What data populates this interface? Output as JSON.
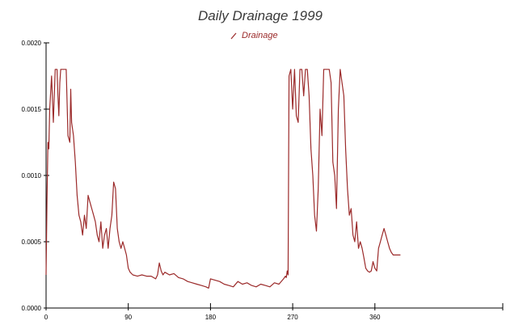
{
  "chart_data": {
    "type": "line",
    "title": "Daily Drainage 1999",
    "xlabel": "",
    "ylabel": "",
    "xlim": [
      0,
      500
    ],
    "ylim": [
      0,
      0.002
    ],
    "xticks": [
      "0",
      "90",
      "180",
      "270",
      "360"
    ],
    "yticks": [
      "0.0000",
      "0.0005",
      "0.0010",
      "0.0015",
      "0.0020"
    ],
    "legend": {
      "position": "top-center",
      "entries": [
        "Drainage"
      ]
    },
    "grid": false,
    "colors": {
      "series": "#9b2a2a",
      "axis": "#000000"
    },
    "series": [
      {
        "name": "Drainage",
        "x": [
          0,
          1,
          2,
          3,
          4,
          6,
          8,
          10,
          12,
          13,
          14,
          15,
          16,
          17,
          18,
          20,
          22,
          24,
          26,
          27,
          28,
          30,
          32,
          34,
          36,
          38,
          40,
          42,
          44,
          46,
          48,
          50,
          52,
          54,
          56,
          58,
          60,
          62,
          64,
          66,
          68,
          70,
          72,
          74,
          76,
          78,
          80,
          82,
          84,
          86,
          88,
          90,
          92,
          95,
          100,
          105,
          110,
          115,
          120,
          122,
          124,
          126,
          128,
          130,
          135,
          140,
          145,
          150,
          155,
          160,
          165,
          170,
          175,
          178,
          180,
          185,
          190,
          195,
          200,
          205,
          210,
          215,
          220,
          225,
          230,
          235,
          240,
          245,
          250,
          255,
          260,
          262,
          263,
          264,
          265,
          266,
          268,
          270,
          272,
          274,
          276,
          278,
          280,
          282,
          284,
          286,
          288,
          290,
          292,
          294,
          296,
          298,
          300,
          302,
          304,
          306,
          308,
          310,
          312,
          314,
          316,
          318,
          320,
          322,
          324,
          326,
          328,
          330,
          332,
          334,
          336,
          338,
          340,
          342,
          344,
          346,
          348,
          350,
          352,
          354,
          356,
          358,
          360,
          362,
          364,
          366,
          368,
          370,
          372,
          374,
          376,
          378,
          380,
          382,
          384,
          386,
          388
        ],
        "values": [
          0.00025,
          0.0008,
          0.00125,
          0.0012,
          0.0015,
          0.00175,
          0.0014,
          0.0018,
          0.0018,
          0.0016,
          0.00145,
          0.0017,
          0.0018,
          0.0018,
          0.0018,
          0.0018,
          0.0018,
          0.0013,
          0.00125,
          0.00165,
          0.0014,
          0.0013,
          0.0011,
          0.00085,
          0.0007,
          0.00065,
          0.00055,
          0.0007,
          0.0006,
          0.00085,
          0.0008,
          0.00075,
          0.0007,
          0.00065,
          0.00055,
          0.0005,
          0.00065,
          0.00045,
          0.00055,
          0.0006,
          0.00045,
          0.0006,
          0.0007,
          0.00095,
          0.0009,
          0.0006,
          0.0005,
          0.00045,
          0.0005,
          0.00045,
          0.0004,
          0.0003,
          0.00027,
          0.00025,
          0.00024,
          0.00025,
          0.00024,
          0.00024,
          0.00022,
          0.00025,
          0.00034,
          0.00028,
          0.00025,
          0.00027,
          0.00025,
          0.00026,
          0.00023,
          0.00022,
          0.0002,
          0.00019,
          0.00018,
          0.00017,
          0.00016,
          0.00015,
          0.00022,
          0.00021,
          0.0002,
          0.00018,
          0.00017,
          0.00016,
          0.0002,
          0.00018,
          0.00019,
          0.00017,
          0.00016,
          0.00018,
          0.00017,
          0.00016,
          0.00019,
          0.00018,
          0.00022,
          0.00024,
          0.00023,
          0.00028,
          0.00025,
          0.00175,
          0.0018,
          0.0015,
          0.0018,
          0.00145,
          0.0014,
          0.0018,
          0.0018,
          0.0016,
          0.0018,
          0.0018,
          0.0016,
          0.0012,
          0.001,
          0.0007,
          0.00058,
          0.0009,
          0.0015,
          0.0013,
          0.0018,
          0.0018,
          0.0018,
          0.0018,
          0.0017,
          0.0011,
          0.001,
          0.00075,
          0.0015,
          0.0018,
          0.0017,
          0.0016,
          0.0012,
          0.0009,
          0.0007,
          0.00075,
          0.00055,
          0.0005,
          0.00065,
          0.00045,
          0.0005,
          0.00045,
          0.00038,
          0.0003,
          0.00028,
          0.00027,
          0.00028,
          0.00035,
          0.0003,
          0.00028,
          0.00045,
          0.0005,
          0.00055,
          0.0006,
          0.00055,
          0.0005,
          0.00045,
          0.00042,
          0.0004,
          0.0004,
          0.0004,
          0.0004,
          0.0004
        ]
      }
    ]
  }
}
